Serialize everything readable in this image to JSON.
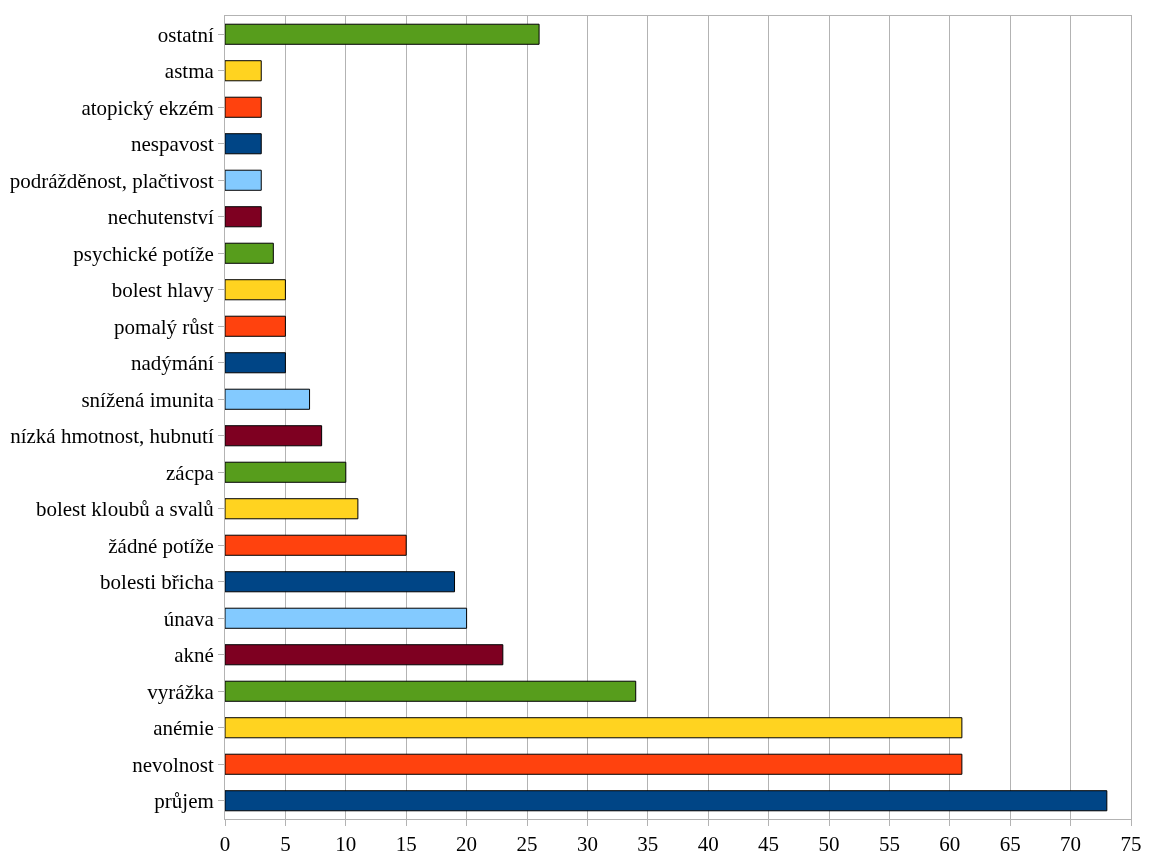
{
  "chart_data": {
    "type": "bar",
    "orientation": "horizontal",
    "categories": [
      "ostatní",
      "astma",
      "atopický ekzém",
      "nespavost",
      "podrážděnost, plačtivost",
      "nechutenství",
      "psychické potíže",
      "bolest hlavy",
      "pomalý růst",
      "nadýmání",
      "snížená imunita",
      "nízká hmotnost, hubnutí",
      "zácpa",
      "bolest kloubů a svalů",
      "žádné potíže",
      "bolesti břicha",
      "únava",
      "akné",
      "vyrážka",
      "anémie",
      "nevolnost",
      "průjem"
    ],
    "values": [
      26,
      3,
      3,
      3,
      3,
      3,
      4,
      5,
      5,
      5,
      7,
      8,
      10,
      11,
      15,
      19,
      20,
      23,
      34,
      61,
      61,
      73
    ],
    "colors": [
      "#579d1c",
      "#ffd320",
      "#ff420e",
      "#004586",
      "#83caff",
      "#7e0021",
      "#579d1c",
      "#ffd320",
      "#ff420e",
      "#004586",
      "#83caff",
      "#7e0021",
      "#579d1c",
      "#ffd320",
      "#ff420e",
      "#004586",
      "#83caff",
      "#7e0021",
      "#579d1c",
      "#ffd320",
      "#ff420e",
      "#004586"
    ],
    "xlim": [
      0,
      75
    ],
    "xticks": [
      0,
      5,
      10,
      15,
      20,
      25,
      30,
      35,
      40,
      45,
      50,
      55,
      60,
      65,
      70,
      75
    ],
    "grid": "x"
  }
}
